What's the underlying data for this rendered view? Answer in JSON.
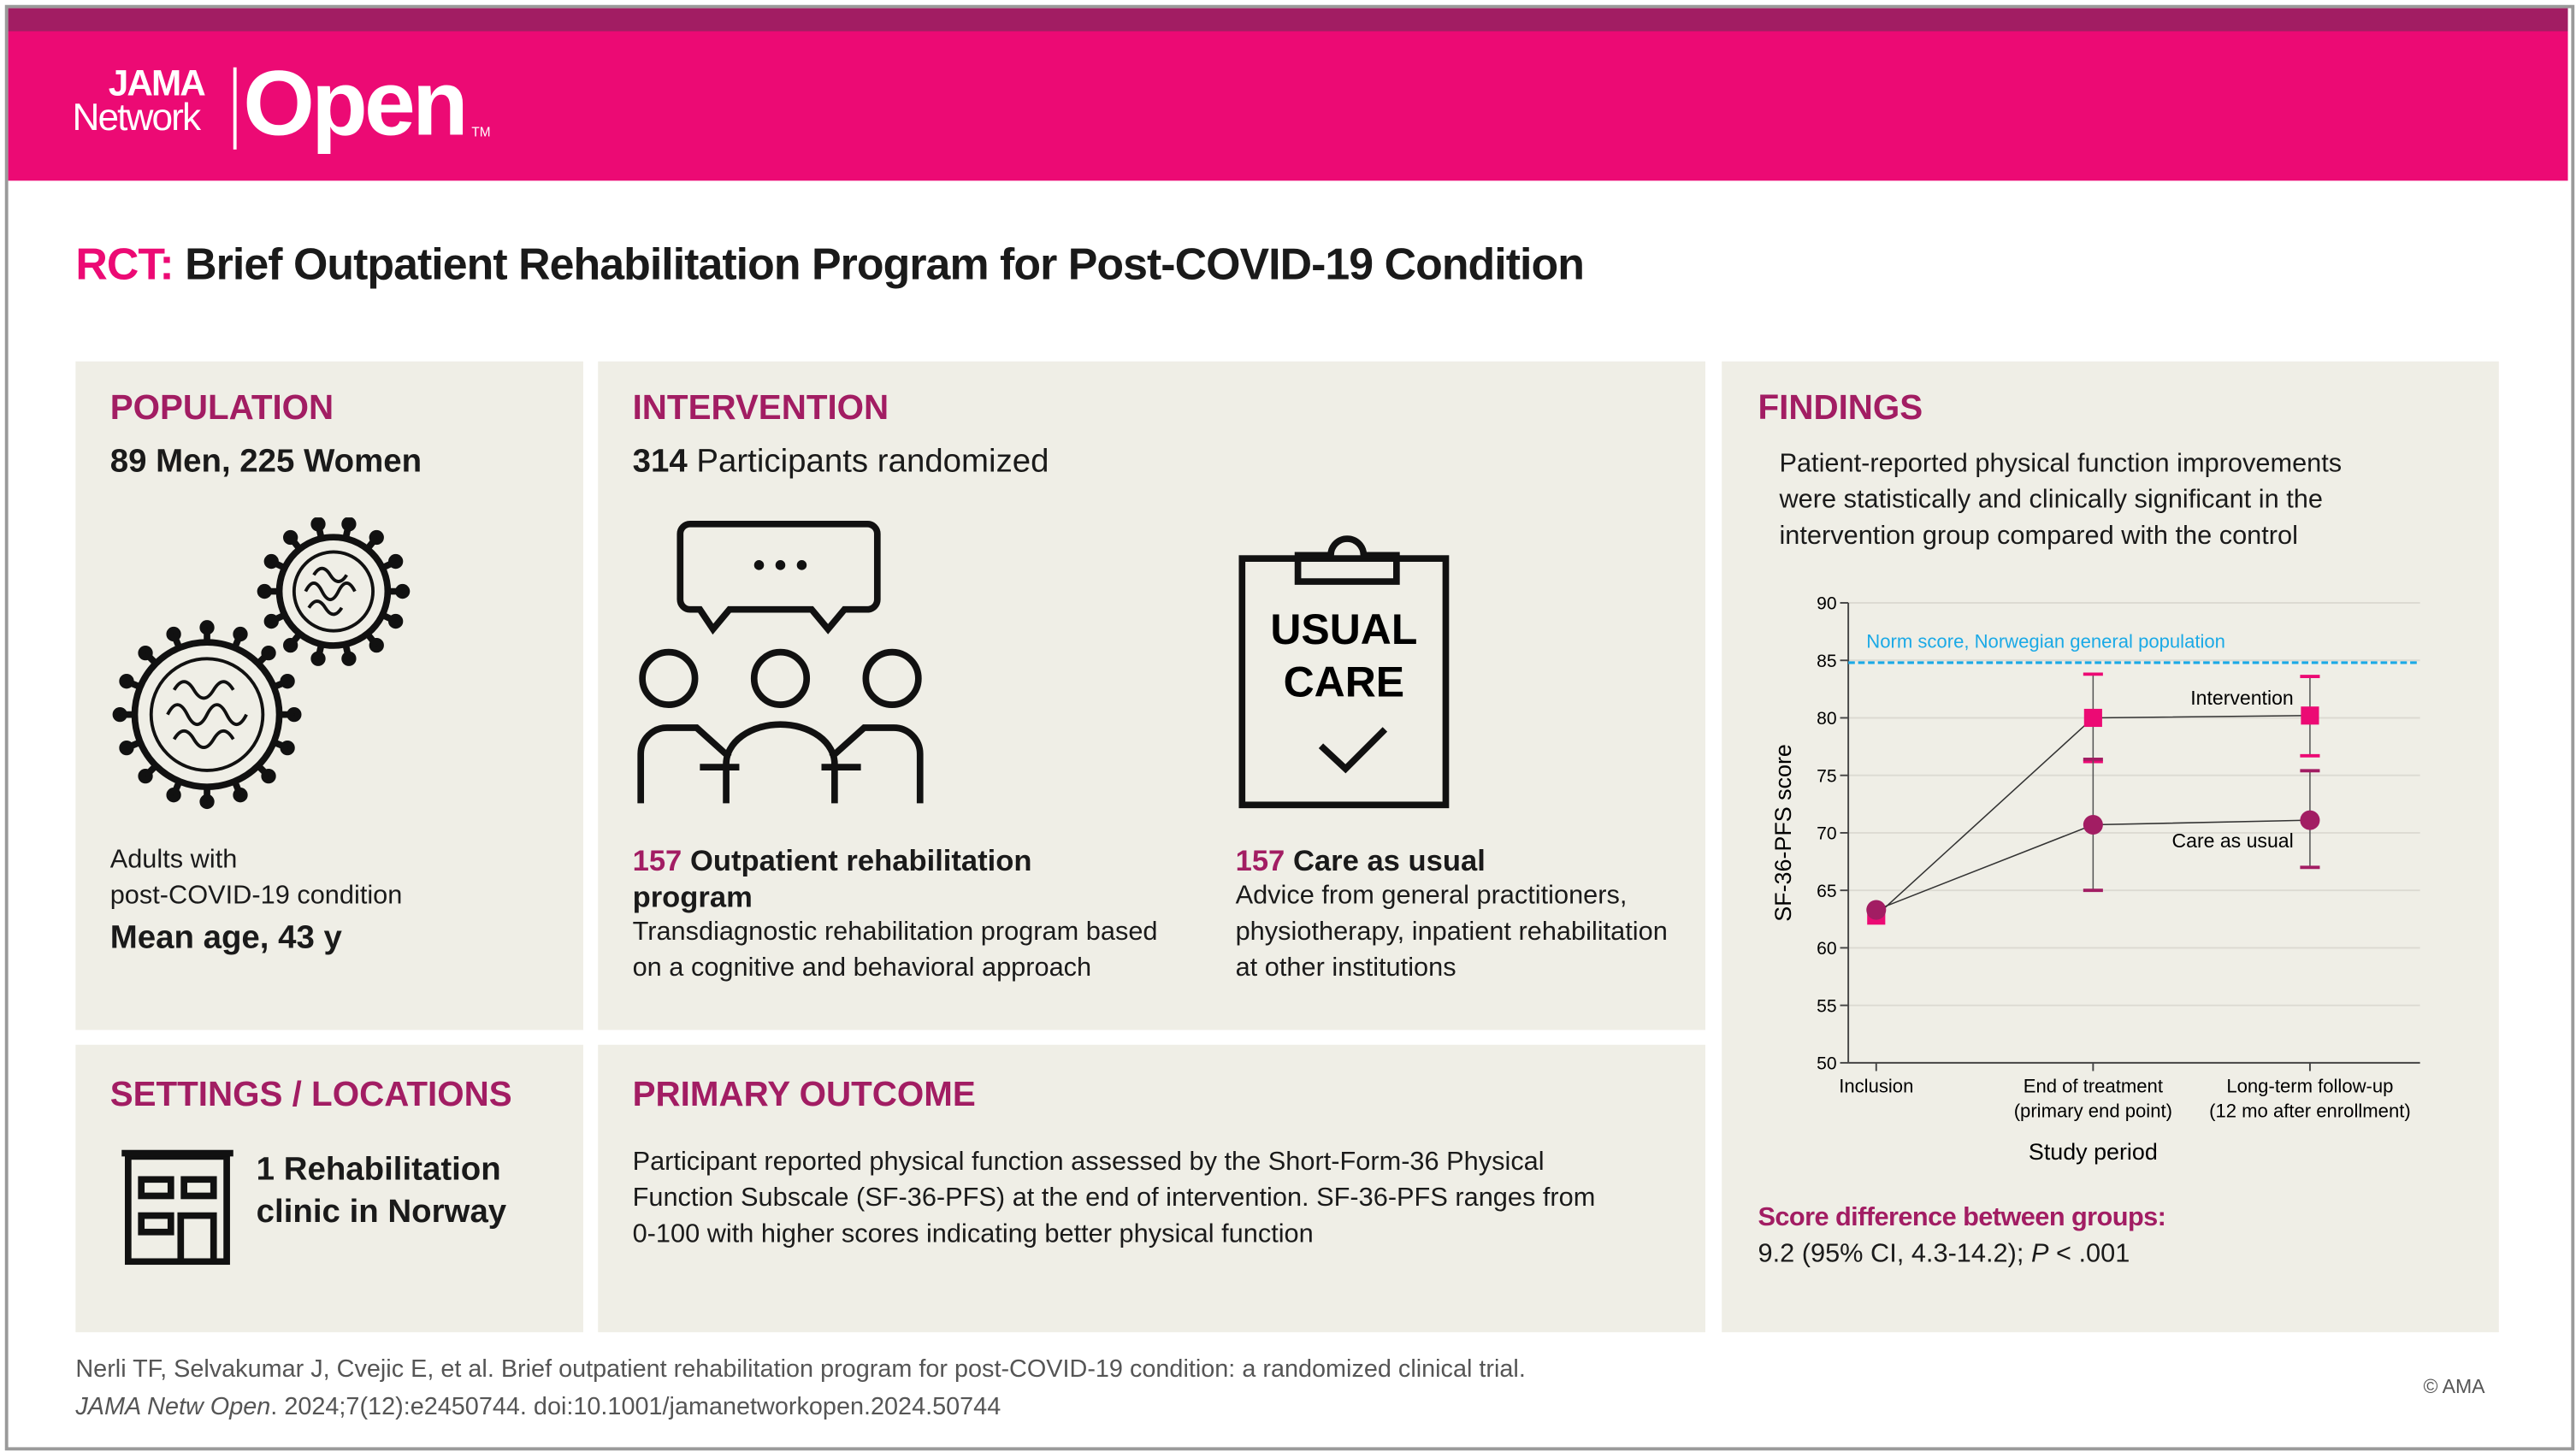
{
  "brand": {
    "jama": "JAMA",
    "network": "Network",
    "open": "Open",
    "tm": "TM",
    "accent": "#ec0a74",
    "dark": "#a21d63"
  },
  "title": {
    "prefix": "RCT:",
    "text": "Brief Outpatient Rehabilitation Program for Post-COVID-19 Condition"
  },
  "population": {
    "heading": "POPULATION",
    "counts": "89 Men, 225 Women",
    "desc1": "Adults with",
    "desc2": "post-COVID-19 condition",
    "age": "Mean age, 43 y",
    "icon": "virus-icon"
  },
  "intervention": {
    "heading": "INTERVENTION",
    "n": "314",
    "randomized": "Participants randomized",
    "arm1": {
      "n": "157",
      "label": "Outpatient rehabilitation program",
      "desc": "Transdiagnostic rehabilitation program based on a cognitive and behavioral approach",
      "icon": "group-discussion-icon"
    },
    "arm2": {
      "n": "157",
      "label": "Care as usual",
      "desc": "Advice from general practitioners, physiotherapy, inpatient rehabilitation at other institutions",
      "icon": "clipboard-icon",
      "clip1": "USUAL",
      "clip2": "CARE"
    }
  },
  "settings": {
    "heading": "SETTINGS / LOCATIONS",
    "line1": "1 Rehabilitation",
    "line2": "clinic in Norway",
    "icon": "building-icon"
  },
  "outcome": {
    "heading": "PRIMARY OUTCOME",
    "text": "Participant reported physical function assessed by the Short-Form-36 Physical Function Subscale (SF-36-PFS) at the end of intervention. SF-36-PFS ranges from 0-100 with higher scores indicating better physical function"
  },
  "findings": {
    "heading": "FINDINGS",
    "text": "Patient-reported physical function improvements were statistically and clinically significant in the intervention group compared with the control",
    "diff_label": "Score difference between groups:",
    "diff_value": "9.2 (95% CI, 4.3-14.2); ",
    "p_label": "P",
    "p_value": " < .001"
  },
  "chart_data": {
    "type": "line",
    "xlabel": "Study period",
    "ylabel": "SF-36-PFS score",
    "ylim": [
      50,
      90
    ],
    "yticks": [
      50,
      55,
      60,
      65,
      70,
      75,
      80,
      85,
      90
    ],
    "categories": [
      "Inclusion",
      "End of treatment|(primary end point)",
      "Long-term follow-up|(12 mo after enrollment)"
    ],
    "reference": {
      "label": "Norm score, Norwegian general population",
      "value": 84.8,
      "color": "#1aa9e6"
    },
    "series": [
      {
        "name": "Intervention",
        "marker": "square",
        "color": "#ec0a74",
        "values": [
          62.8,
          80.0,
          80.2
        ],
        "ci": [
          null,
          [
            76.2,
            83.8
          ],
          [
            76.7,
            83.6
          ]
        ]
      },
      {
        "name": "Care as usual",
        "marker": "circle",
        "color": "#a21d63",
        "values": [
          63.3,
          70.7,
          71.1
        ],
        "ci": [
          null,
          [
            65.0,
            76.4
          ],
          [
            67.0,
            75.4
          ]
        ]
      }
    ]
  },
  "footer": {
    "citation": "Nerli TF, Selvakumar J, Cvejic E, et al. Brief outpatient rehabilitation program for post-COVID-19 condition: a randomized clinical trial.",
    "journal": "JAMA Netw Open",
    "ref": ". 2024;7(12):e2450744. doi:10.1001/jamanetworkopen.2024.50744",
    "copyright": "© AMA"
  }
}
